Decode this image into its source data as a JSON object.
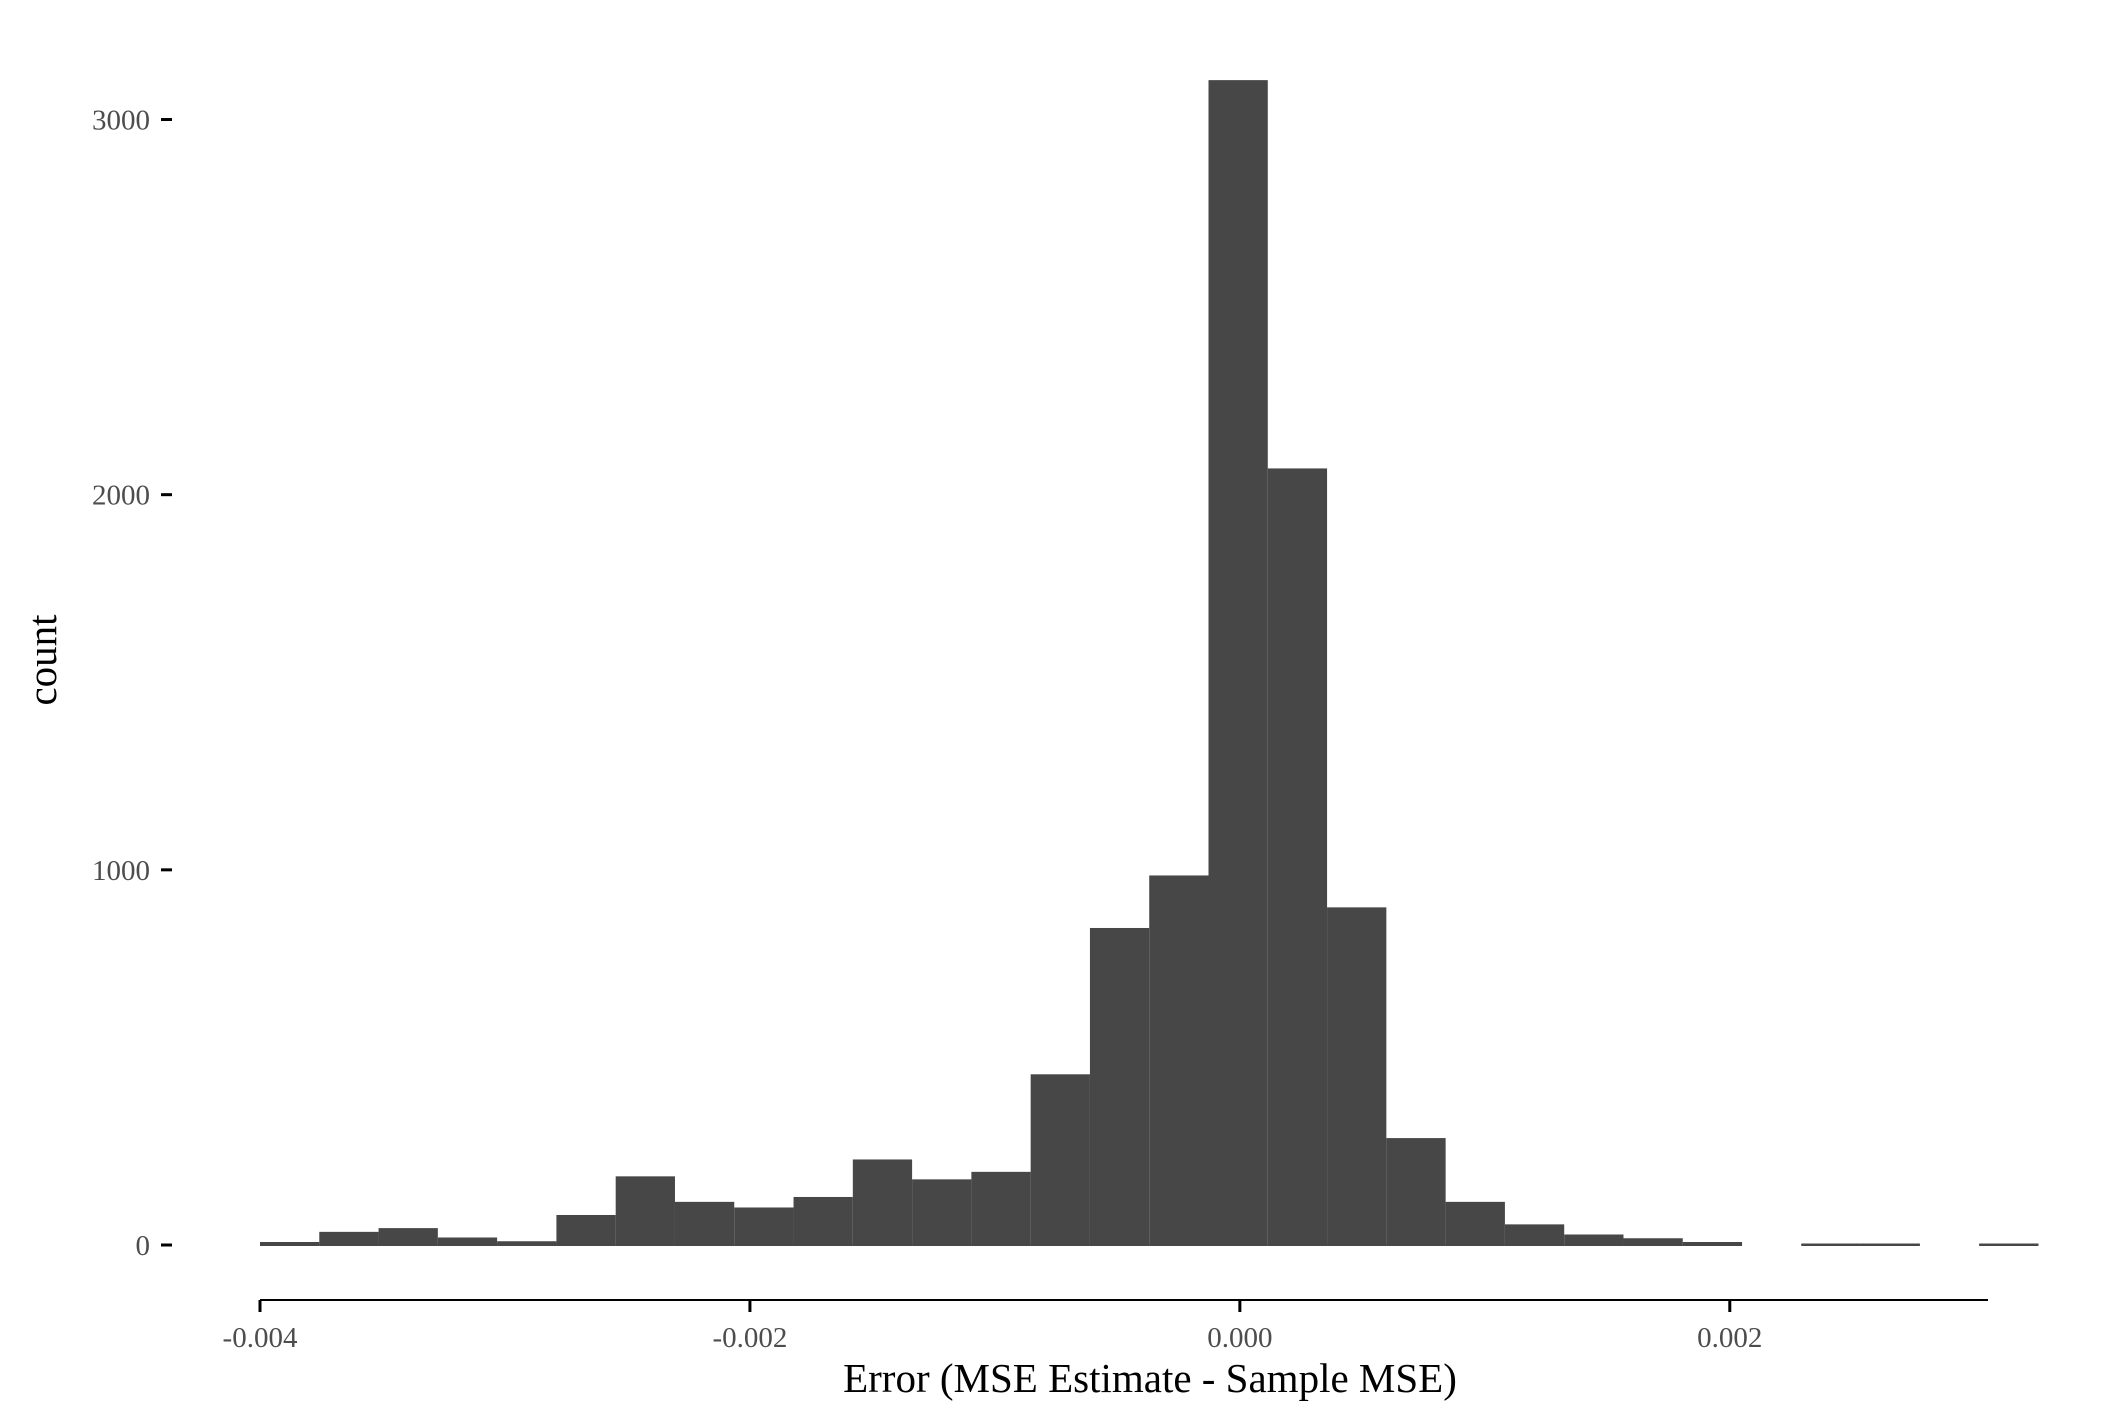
{
  "chart_data": {
    "type": "bar",
    "subtype": "histogram",
    "title": "",
    "xlabel": "Error (MSE Estimate - Sample MSE)",
    "ylabel": "count",
    "x_ticks": [
      {
        "value": -0.004,
        "label": "-0.004"
      },
      {
        "value": -0.002,
        "label": "-0.002"
      },
      {
        "value": 0.0,
        "label": "0.000"
      },
      {
        "value": 0.002,
        "label": "0.002"
      }
    ],
    "y_ticks": [
      {
        "value": 0,
        "label": "0"
      },
      {
        "value": 1000,
        "label": "1000"
      },
      {
        "value": 2000,
        "label": "2000"
      },
      {
        "value": 3000,
        "label": "3000"
      }
    ],
    "xlim": [
      -0.004,
      0.00325
    ],
    "ylim": [
      0,
      3100
    ],
    "bin_width": 0.000242,
    "bins": [
      {
        "x0": -0.004,
        "count": 8
      },
      {
        "x0": -0.003758,
        "count": 35
      },
      {
        "x0": -0.003516,
        "count": 45
      },
      {
        "x0": -0.003274,
        "count": 20
      },
      {
        "x0": -0.003032,
        "count": 10
      },
      {
        "x0": -0.00279,
        "count": 80
      },
      {
        "x0": -0.002548,
        "count": 183
      },
      {
        "x0": -0.002306,
        "count": 115
      },
      {
        "x0": -0.002064,
        "count": 100
      },
      {
        "x0": -0.001822,
        "count": 128
      },
      {
        "x0": -0.00158,
        "count": 228
      },
      {
        "x0": -0.001338,
        "count": 175
      },
      {
        "x0": -0.001096,
        "count": 195
      },
      {
        "x0": -0.000854,
        "count": 455
      },
      {
        "x0": -0.000612,
        "count": 845
      },
      {
        "x0": -0.00037,
        "count": 985
      },
      {
        "x0": -0.000128,
        "count": 3105
      },
      {
        "x0": 0.000114,
        "count": 2070
      },
      {
        "x0": 0.000356,
        "count": 900
      },
      {
        "x0": 0.000598,
        "count": 285
      },
      {
        "x0": 0.00084,
        "count": 115
      },
      {
        "x0": 0.001082,
        "count": 55
      },
      {
        "x0": 0.001324,
        "count": 28
      },
      {
        "x0": 0.001566,
        "count": 18
      },
      {
        "x0": 0.001808,
        "count": 8
      },
      {
        "x0": 0.00205,
        "count": 0
      },
      {
        "x0": 0.002292,
        "count": 4
      },
      {
        "x0": 0.002534,
        "count": 2
      },
      {
        "x0": 0.002776,
        "count": 0
      },
      {
        "x0": 0.003018,
        "count": 2
      }
    ],
    "bar_color": "#474747",
    "axis_line_color": "#000000",
    "grid": false,
    "legend": "none"
  }
}
